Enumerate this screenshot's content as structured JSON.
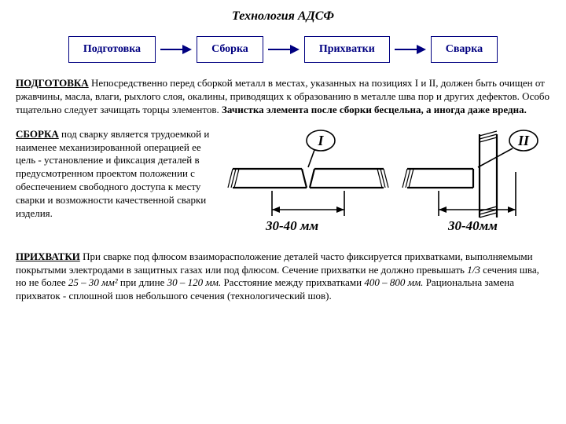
{
  "title": "Технология АДСФ",
  "flow": {
    "b1": "Подготовка",
    "b2": "Сборка",
    "b3": "Прихватки",
    "b4": "Сварка"
  },
  "p1": {
    "head": "ПОДГОТОВКА",
    "body": " Непосредственно перед сборкой металл в местах, указанных на позициях I и II, должен быть очищен от ржавчины, масла, влаги, рыхлого слоя, окалины, приводящих к образованию в металле шва пор и других дефектов. Особо тщательно следует зачищать торцы элементов. ",
    "bold_tail": "Зачистка элемента после сборки бесцельна, а иногда даже вредна."
  },
  "p2": {
    "head": "СБОРКА",
    "body": " под сварку является трудоемкой и наименее механизированной операцией ее цель - установление и фиксация деталей в предусмотренном проектом положении с обеспечением свободного доступа к месту сварки и возможности качественной сварки изделия."
  },
  "p3": {
    "head": "ПРИХВАТКИ",
    "body1": " При сварке под флюсом взаиморасположение деталей часто фиксируется прихватками, выполняемыми покрытыми электродами в защитных газах или под флюсом. Сечение прихватки не должно превышать ",
    "i1": "1/3",
    "body2": " сечения шва, но не более ",
    "i2": "25 – 30 мм²",
    "body3": " при длине ",
    "i3": "30 – 120 мм.",
    "body4": " Расстояние между прихватками ",
    "i4": "400 – 800 мм.",
    "body5": " Рациональна замена прихваток - сплошной шов небольшого сечения (технологический шов)."
  },
  "diagram": {
    "label_I": "I",
    "label_II": "II",
    "dim1": "30-40 мм",
    "dim2": "30-40мм",
    "stroke": "#000000",
    "stroke_width": 2.2,
    "hatch_stroke": 1.2,
    "font_family": "Georgia, serif",
    "label_fontsize": 18,
    "dim_fontsize": 17,
    "ellipse_rx": 18,
    "ellipse_ry": 13
  }
}
